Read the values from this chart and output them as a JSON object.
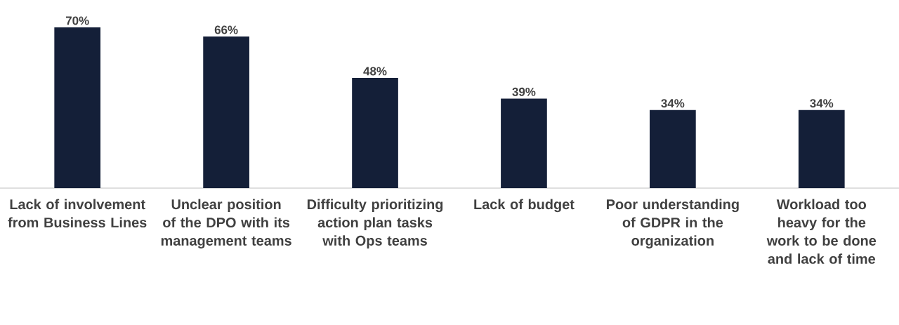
{
  "chart_data": {
    "type": "bar",
    "categories": [
      "Lack of involvement from Business Lines",
      "Unclear position of the DPO with its management teams",
      "Difficulty prioritizing action plan tasks with Ops teams",
      "Lack of budget",
      "Poor understanding of GDPR in the organization",
      "Workload too heavy for the work to be done and lack of time"
    ],
    "values": [
      70,
      66,
      48,
      39,
      34,
      34
    ],
    "value_labels": [
      "70%",
      "66%",
      "48%",
      "39%",
      "34%",
      "34%"
    ],
    "color": "#141f38"
  }
}
